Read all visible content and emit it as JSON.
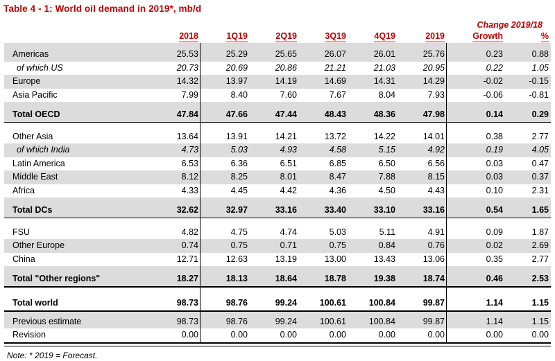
{
  "title": "Table 4 - 1: World oil demand in 2019*, mb/d",
  "change_header": "Change 2019/18",
  "columns": [
    "2018",
    "1Q19",
    "2Q19",
    "3Q19",
    "4Q19",
    "2019",
    "Growth",
    "%"
  ],
  "rows": [
    {
      "label": "Americas",
      "type": "region",
      "shaded": true,
      "gap": false,
      "values": [
        "25.53",
        "25.29",
        "25.65",
        "26.07",
        "26.01",
        "25.76",
        "0.23",
        "0.88"
      ]
    },
    {
      "label": "of which US",
      "type": "subitem",
      "shaded": false,
      "gap": false,
      "values": [
        "20.73",
        "20.69",
        "20.86",
        "21.21",
        "21.03",
        "20.95",
        "0.22",
        "1.05"
      ]
    },
    {
      "label": "Europe",
      "type": "region",
      "shaded": true,
      "gap": false,
      "values": [
        "14.32",
        "13.97",
        "14.19",
        "14.69",
        "14.31",
        "14.29",
        "-0.02",
        "-0.15"
      ]
    },
    {
      "label": "Asia Pacific",
      "type": "region",
      "shaded": false,
      "gap": false,
      "values": [
        "7.99",
        "8.40",
        "7.60",
        "7.67",
        "8.04",
        "7.93",
        "-0.06",
        "-0.81"
      ]
    },
    {
      "label": "Total OECD",
      "type": "total",
      "shaded": true,
      "gap": false,
      "values": [
        "47.84",
        "47.66",
        "47.44",
        "48.43",
        "48.36",
        "47.98",
        "0.14",
        "0.29"
      ]
    },
    {
      "label": "Other Asia",
      "type": "region",
      "shaded": false,
      "gap": true,
      "values": [
        "13.64",
        "13.91",
        "14.21",
        "13.72",
        "14.22",
        "14.01",
        "0.38",
        "2.77"
      ]
    },
    {
      "label": "of which India",
      "type": "subitem",
      "shaded": true,
      "gap": false,
      "values": [
        "4.73",
        "5.03",
        "4.93",
        "4.58",
        "5.15",
        "4.92",
        "0.19",
        "4.05"
      ]
    },
    {
      "label": "Latin America",
      "type": "region",
      "shaded": false,
      "gap": false,
      "values": [
        "6.53",
        "6.36",
        "6.51",
        "6.85",
        "6.50",
        "6.56",
        "0.03",
        "0.47"
      ]
    },
    {
      "label": "Middle East",
      "type": "region",
      "shaded": true,
      "gap": false,
      "values": [
        "8.12",
        "8.25",
        "8.01",
        "8.47",
        "7.88",
        "8.15",
        "0.03",
        "0.37"
      ]
    },
    {
      "label": "Africa",
      "type": "region",
      "shaded": false,
      "gap": false,
      "values": [
        "4.33",
        "4.45",
        "4.42",
        "4.36",
        "4.50",
        "4.43",
        "0.10",
        "2.31"
      ]
    },
    {
      "label": "Total DCs",
      "type": "total",
      "shaded": true,
      "gap": false,
      "values": [
        "32.62",
        "32.97",
        "33.16",
        "33.40",
        "33.10",
        "33.16",
        "0.54",
        "1.65"
      ]
    },
    {
      "label": "FSU",
      "type": "region",
      "shaded": false,
      "gap": true,
      "values": [
        "4.82",
        "4.75",
        "4.74",
        "5.03",
        "5.11",
        "4.91",
        "0.09",
        "1.87"
      ]
    },
    {
      "label": "Other Europe",
      "type": "region",
      "shaded": true,
      "gap": false,
      "values": [
        "0.74",
        "0.75",
        "0.71",
        "0.75",
        "0.84",
        "0.76",
        "0.02",
        "2.69"
      ]
    },
    {
      "label": "China",
      "type": "region",
      "shaded": false,
      "gap": false,
      "values": [
        "12.71",
        "12.63",
        "13.19",
        "13.00",
        "13.43",
        "13.06",
        "0.35",
        "2.77"
      ]
    },
    {
      "label": "Total \"Other regions\"",
      "type": "total-thick",
      "shaded": true,
      "gap": false,
      "values": [
        "18.27",
        "18.13",
        "18.64",
        "18.78",
        "19.38",
        "18.74",
        "0.46",
        "2.53"
      ]
    },
    {
      "label": "Total world",
      "type": "grand",
      "shaded": false,
      "gap": true,
      "values": [
        "98.73",
        "98.76",
        "99.24",
        "100.61",
        "100.84",
        "99.87",
        "1.14",
        "1.15"
      ]
    },
    {
      "label": "Previous estimate",
      "type": "aux",
      "shaded": true,
      "gap": false,
      "values": [
        "98.73",
        "98.76",
        "99.24",
        "100.61",
        "100.84",
        "99.87",
        "1.14",
        "1.15"
      ]
    },
    {
      "label": "Revision",
      "type": "region",
      "shaded": false,
      "gap": false,
      "values": [
        "0.00",
        "0.00",
        "0.00",
        "0.00",
        "0.00",
        "0.00",
        "0.00",
        "0.00"
      ]
    }
  ],
  "note": "Note: * 2019 = Forecast.",
  "colors": {
    "accent_red": "#C00000",
    "row_shade": "#DCDCDC",
    "rule_black": "#000000"
  }
}
